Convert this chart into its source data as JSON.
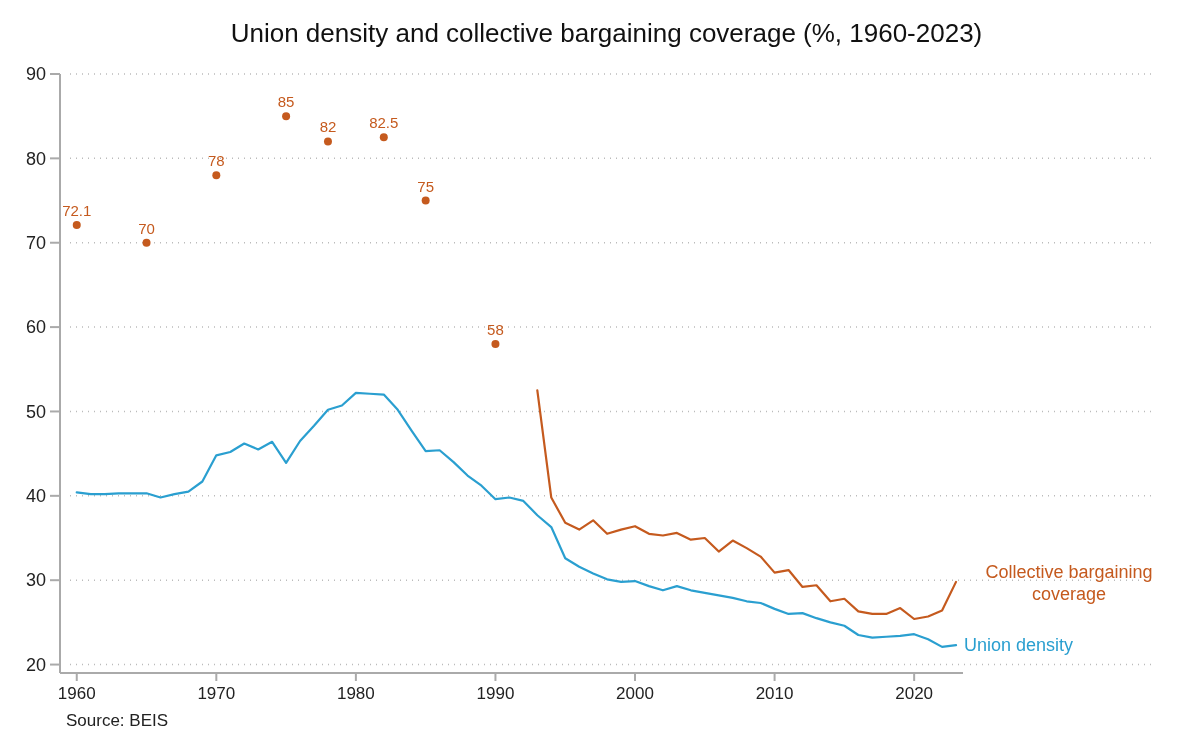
{
  "chart_data": {
    "type": "line",
    "title": "Union density and collective bargaining coverage (%, 1960-2023)",
    "annotations": [
      "Source: BEIS"
    ],
    "xlim": [
      1958.8,
      2023.5
    ],
    "xticks": [
      1960,
      1970,
      1980,
      1990,
      2000,
      2010,
      2020
    ],
    "ylim": [
      19,
      90
    ],
    "yticks": [
      20,
      30,
      40,
      50,
      60,
      70,
      80,
      90
    ],
    "grid": "y",
    "legend": false,
    "marker": "none",
    "line_style": "solid",
    "series": [
      {
        "name": "Union density",
        "color": "#2a9fd0",
        "x": [
          1960,
          1961,
          1962,
          1963,
          1964,
          1965,
          1966,
          1967,
          1968,
          1969,
          1970,
          1971,
          1972,
          1973,
          1974,
          1975,
          1976,
          1977,
          1978,
          1979,
          1980,
          1981,
          1982,
          1983,
          1984,
          1985,
          1986,
          1987,
          1988,
          1989,
          1990,
          1991,
          1992,
          1993,
          1994,
          1995,
          1996,
          1997,
          1998,
          1999,
          2000,
          2001,
          2002,
          2003,
          2004,
          2005,
          2006,
          2007,
          2008,
          2009,
          2010,
          2011,
          2012,
          2013,
          2014,
          2015,
          2016,
          2017,
          2018,
          2019,
          2020,
          2021,
          2022,
          2023
        ],
        "values": [
          40.4,
          40.2,
          40.2,
          40.3,
          40.3,
          40.3,
          39.8,
          40.2,
          40.5,
          41.7,
          44.8,
          45.2,
          46.2,
          45.5,
          46.4,
          43.9,
          46.5,
          48.3,
          50.2,
          50.7,
          52.2,
          52.1,
          52.0,
          50.2,
          47.7,
          45.3,
          45.4,
          44.0,
          42.4,
          41.2,
          39.6,
          39.8,
          39.4,
          37.7,
          36.3,
          32.6,
          31.6,
          30.8,
          30.1,
          29.8,
          29.9,
          29.3,
          28.8,
          29.3,
          28.8,
          28.5,
          28.2,
          27.9,
          27.5,
          27.3,
          26.6,
          26.0,
          26.1,
          25.5,
          25.0,
          24.6,
          23.5,
          23.2,
          23.3,
          23.4,
          23.6,
          23.0,
          22.1,
          22.3
        ]
      },
      {
        "name": "Collective bargaining coverage",
        "color": "#c55a1e",
        "x": [
          1993,
          1994,
          1995,
          1996,
          1997,
          1998,
          1999,
          2000,
          2001,
          2002,
          2003,
          2004,
          2005,
          2006,
          2007,
          2008,
          2009,
          2010,
          2011,
          2012,
          2013,
          2014,
          2015,
          2016,
          2017,
          2018,
          2019,
          2020,
          2021,
          2022,
          2023
        ],
        "values": [
          52.5,
          39.8,
          36.8,
          36.0,
          37.1,
          35.5,
          36.0,
          36.4,
          35.5,
          35.3,
          35.6,
          34.8,
          35.0,
          33.4,
          34.7,
          33.8,
          32.8,
          30.9,
          31.2,
          29.2,
          29.4,
          27.5,
          27.8,
          26.3,
          26.0,
          26.0,
          26.7,
          25.4,
          25.7,
          26.4,
          29.8
        ]
      },
      {
        "type": "scatter",
        "color": "#c55a1e",
        "marker": "circle",
        "x": [
          1960,
          1965,
          1970,
          1975,
          1978,
          1982,
          1985,
          1990
        ],
        "values": [
          72.1,
          70,
          78,
          85,
          82,
          82.5,
          75,
          58
        ],
        "value_labels": [
          "72.1",
          "70",
          "78",
          "85",
          "82",
          "82.5",
          "75",
          "58"
        ]
      }
    ]
  }
}
